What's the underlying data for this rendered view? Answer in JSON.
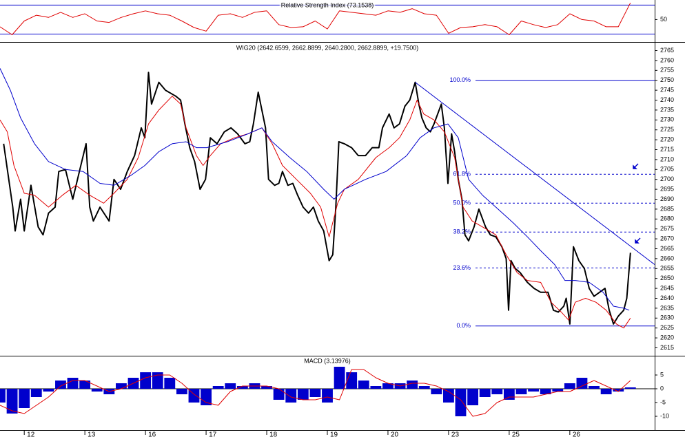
{
  "chart_data": [
    {
      "type": "line",
      "title": "Relative Strength Index (73.1538)",
      "xlim": [
        -0.4,
        10.4
      ],
      "ylim": [
        20,
        77
      ],
      "yticks": [
        50
      ],
      "levels": [
        30,
        70
      ],
      "level_color": "#0000cc",
      "x": [
        -0.4,
        -0.2,
        0,
        0.2,
        0.4,
        0.6,
        0.8,
        1,
        1.2,
        1.4,
        1.6,
        1.8,
        2,
        2.2,
        2.4,
        2.6,
        2.8,
        3,
        3.2,
        3.4,
        3.6,
        3.8,
        4,
        4.2,
        4.4,
        4.6,
        4.8,
        5,
        5.2,
        5.4,
        5.6,
        5.8,
        6,
        6.2,
        6.4,
        6.6,
        6.8,
        7,
        7.2,
        7.4,
        7.6,
        7.8,
        8,
        8.2,
        8.4,
        8.6,
        8.8,
        9,
        9.2,
        9.4,
        9.6,
        9.8,
        10
      ],
      "series": [
        {
          "color": "#e00000",
          "values": [
            40,
            29,
            48,
            56,
            53,
            60,
            53,
            58,
            48,
            46,
            53,
            58,
            62,
            58,
            56,
            48,
            39,
            34,
            56,
            58,
            53,
            60,
            62,
            43,
            39,
            40,
            48,
            37,
            62,
            60,
            58,
            56,
            62,
            60,
            65,
            58,
            56,
            31,
            39,
            40,
            43,
            40,
            29,
            48,
            43,
            39,
            43,
            58,
            50,
            48,
            40,
            40,
            73
          ]
        }
      ]
    },
    {
      "type": "line",
      "title": "WIG20 (2642.6599, 2662.8899, 2640.2800, 2662.8899, +19.7500)",
      "xlim": [
        -0.4,
        10.4
      ],
      "ylim": [
        2611,
        2769
      ],
      "yticks": [
        2615,
        2620,
        2625,
        2630,
        2635,
        2640,
        2645,
        2650,
        2655,
        2660,
        2665,
        2670,
        2675,
        2680,
        2685,
        2690,
        2695,
        2700,
        2705,
        2710,
        2715,
        2720,
        2725,
        2730,
        2735,
        2740,
        2745,
        2750,
        2755,
        2760,
        2765
      ],
      "series": [
        {
          "color": "#000000",
          "x": [
            -0.34,
            -0.19,
            -0.15,
            -0.06,
            0,
            0.11,
            0.23,
            0.31,
            0.4,
            0.51,
            0.57,
            0.68,
            0.8,
            0.91,
            1.02,
            1.08,
            1.14,
            1.25,
            1.4,
            1.48,
            1.59,
            1.7,
            1.82,
            1.93,
            1.99,
            2.05,
            2.1,
            2.22,
            2.33,
            2.5,
            2.58,
            2.65,
            2.73,
            2.81,
            2.9,
            2.99,
            3.07,
            3.18,
            3.3,
            3.41,
            3.52,
            3.64,
            3.72,
            3.78,
            3.86,
            3.92,
            3.98,
            4.03,
            4.13,
            4.2,
            4.26,
            4.35,
            4.43,
            4.51,
            4.6,
            4.69,
            4.77,
            4.85,
            4.94,
            5.03,
            5.09,
            5.14,
            5.19,
            5.28,
            5.4,
            5.51,
            5.63,
            5.74,
            5.85,
            5.91,
            6.02,
            6.1,
            6.19,
            6.28,
            6.36,
            6.45,
            6.51,
            6.56,
            6.63,
            6.7,
            6.76,
            6.88,
            6.93,
            6.99,
            7.05,
            7.1,
            7.16,
            7.22,
            7.27,
            7.33,
            7.42,
            7.5,
            7.61,
            7.69,
            7.78,
            7.88,
            7.95,
            7.99,
            8.03,
            8.1,
            8.18,
            8.3,
            8.41,
            8.52,
            8.64,
            8.73,
            8.81,
            8.9,
            8.94,
            9.0,
            9.06,
            9.15,
            9.24,
            9.32,
            9.4,
            9.49,
            9.58,
            9.65,
            9.72,
            9.8,
            9.89,
            9.94,
            10.0
          ],
          "values": [
            2718,
            2686,
            2674,
            2690,
            2674,
            2697,
            2676,
            2672,
            2683,
            2686,
            2704,
            2705,
            2690,
            2704,
            2718,
            2686,
            2679,
            2686,
            2679,
            2700,
            2695,
            2704,
            2712,
            2726,
            2721,
            2754,
            2738,
            2749,
            2745,
            2742,
            2740,
            2728,
            2716,
            2709,
            2695,
            2700,
            2721,
            2718,
            2724,
            2726,
            2723,
            2718,
            2719,
            2728,
            2744,
            2735,
            2726,
            2700,
            2697,
            2698,
            2704,
            2697,
            2698,
            2692,
            2686,
            2683,
            2686,
            2679,
            2674,
            2659,
            2662,
            2686,
            2719,
            2718,
            2716,
            2712,
            2712,
            2716,
            2716,
            2726,
            2733,
            2726,
            2728,
            2737,
            2740,
            2749,
            2738,
            2731,
            2726,
            2724,
            2728,
            2738,
            2726,
            2698,
            2723,
            2714,
            2700,
            2690,
            2672,
            2669,
            2676,
            2685,
            2676,
            2672,
            2671,
            2666,
            2660,
            2634,
            2659,
            2655,
            2653,
            2648,
            2645,
            2643,
            2643,
            2634,
            2633,
            2636,
            2640,
            2627,
            2666,
            2659,
            2655,
            2645,
            2641,
            2643,
            2645,
            2634,
            2627,
            2631,
            2634,
            2640,
            2663
          ]
        },
        {
          "color": "#e00000",
          "x": [
            -0.4,
            -0.28,
            -0.17,
            0,
            0.17,
            0.4,
            0.63,
            0.85,
            1.08,
            1.31,
            1.48,
            1.7,
            1.88,
            2.05,
            2.22,
            2.44,
            2.58,
            2.67,
            2.84,
            2.95,
            3.07,
            3.24,
            3.47,
            3.69,
            3.92,
            4.09,
            4.26,
            4.49,
            4.72,
            4.89,
            5.03,
            5.17,
            5.28,
            5.51,
            5.8,
            6.02,
            6.19,
            6.36,
            6.48,
            6.59,
            6.76,
            6.93,
            7.1,
            7.24,
            7.39,
            7.56,
            7.78,
            7.95,
            8.13,
            8.3,
            8.52,
            8.69,
            8.86,
            8.98,
            9.09,
            9.26,
            9.43,
            9.6,
            9.77,
            9.89,
            10.0
          ],
          "values": [
            2730,
            2724,
            2707,
            2693,
            2692,
            2686,
            2692,
            2697,
            2692,
            2688,
            2693,
            2700,
            2711,
            2728,
            2735,
            2742,
            2738,
            2726,
            2712,
            2707,
            2712,
            2718,
            2721,
            2723,
            2726,
            2718,
            2707,
            2700,
            2693,
            2686,
            2671,
            2688,
            2695,
            2700,
            2711,
            2716,
            2721,
            2730,
            2740,
            2733,
            2730,
            2724,
            2711,
            2686,
            2679,
            2676,
            2672,
            2662,
            2653,
            2649,
            2648,
            2638,
            2633,
            2629,
            2638,
            2640,
            2638,
            2634,
            2627,
            2625,
            2630
          ]
        },
        {
          "color": "#0000cc",
          "x": [
            -0.4,
            -0.23,
            -0.06,
            0.17,
            0.4,
            0.68,
            0.97,
            1.25,
            1.48,
            1.76,
            1.99,
            2.22,
            2.44,
            2.67,
            2.84,
            3.01,
            3.35,
            3.69,
            3.92,
            4.09,
            4.38,
            4.66,
            4.94,
            5.11,
            5.28,
            5.63,
            5.97,
            6.31,
            6.53,
            6.76,
            6.99,
            7.16,
            7.33,
            7.56,
            7.78,
            8.07,
            8.3,
            8.52,
            8.75,
            8.92,
            9.09,
            9.32,
            9.55,
            9.72,
            9.89,
            9.98
          ],
          "values": [
            2756,
            2745,
            2731,
            2718,
            2709,
            2705,
            2704,
            2698,
            2697,
            2702,
            2707,
            2714,
            2718,
            2719,
            2716,
            2716,
            2719,
            2723,
            2726,
            2719,
            2711,
            2704,
            2695,
            2690,
            2695,
            2700,
            2704,
            2712,
            2721,
            2726,
            2728,
            2721,
            2700,
            2692,
            2686,
            2678,
            2671,
            2664,
            2657,
            2649,
            2649,
            2648,
            2643,
            2636,
            2635,
            2634
          ]
        }
      ],
      "trendline": {
        "color": "#0000cc",
        "x": [
          6.45,
          10.4
        ],
        "values": [
          2749,
          2657
        ]
      },
      "fib": {
        "color": "#0000cc",
        "levels": [
          {
            "value": 2750,
            "label": "100.0%"
          },
          {
            "value": 2702.6,
            "label": "61.8%"
          },
          {
            "value": 2688,
            "label": "50.0%"
          },
          {
            "value": 2673.4,
            "label": "38.2%"
          },
          {
            "value": 2655.3,
            "label": "23.6%"
          },
          {
            "value": 2626,
            "label": "0.0%"
          }
        ]
      }
    },
    {
      "type": "bar",
      "title": "MACD (3.13976)",
      "xlim": [
        -0.4,
        10.4
      ],
      "ylim": [
        -15,
        11.75
      ],
      "yticks": [
        5,
        0,
        -5,
        -10
      ],
      "color": "#0000cc",
      "xticks": [
        {
          "value": 0,
          "label": "12"
        },
        {
          "value": 1,
          "label": "13"
        },
        {
          "value": 2,
          "label": "16"
        },
        {
          "value": 3,
          "label": "17"
        },
        {
          "value": 4,
          "label": "18"
        },
        {
          "value": 5,
          "label": "19"
        },
        {
          "value": 6,
          "label": "20"
        },
        {
          "value": 7,
          "label": "23"
        },
        {
          "value": 8,
          "label": "25"
        },
        {
          "value": 9,
          "label": "26"
        }
      ],
      "x": [
        -0.4,
        -0.2,
        0,
        0.2,
        0.4,
        0.6,
        0.8,
        1,
        1.2,
        1.4,
        1.6,
        1.8,
        2,
        2.2,
        2.4,
        2.6,
        2.8,
        3,
        3.2,
        3.4,
        3.6,
        3.8,
        4,
        4.2,
        4.4,
        4.6,
        4.8,
        5,
        5.2,
        5.4,
        5.6,
        5.8,
        6,
        6.2,
        6.4,
        6.6,
        6.8,
        7,
        7.2,
        7.4,
        7.6,
        7.8,
        8,
        8.2,
        8.4,
        8.6,
        8.8,
        9,
        9.2,
        9.4,
        9.6,
        9.8,
        10
      ],
      "values": [
        -5,
        -9,
        -7,
        -3,
        -1,
        3,
        4,
        3,
        -1,
        -2,
        2,
        4,
        6,
        6,
        4,
        -2,
        -5,
        -6,
        1,
        2,
        1,
        2,
        1,
        -4,
        -5,
        -4,
        -3,
        -5,
        8,
        6,
        3,
        1,
        2,
        2,
        3,
        1,
        -2,
        -5,
        -10,
        -6,
        -3,
        -2,
        -4,
        -2,
        -1,
        -2,
        -1,
        2,
        4,
        1,
        -2,
        -1,
        0.5
      ],
      "series": [
        {
          "color": "#e00000",
          "values": [
            -6,
            -8,
            -9,
            -6,
            -3,
            1,
            3,
            3,
            1,
            -1,
            0,
            2,
            4,
            5,
            5,
            2,
            -2,
            -5,
            -6,
            -1,
            1,
            1,
            1,
            0,
            -3,
            -4,
            -4,
            -3,
            -4,
            7,
            7,
            4,
            2,
            1,
            2,
            2,
            1,
            -1,
            -4,
            -10,
            -9,
            -5,
            -3,
            -3,
            -3,
            -2,
            -1,
            -1,
            1,
            3,
            1,
            -1,
            3
          ]
        }
      ]
    }
  ]
}
